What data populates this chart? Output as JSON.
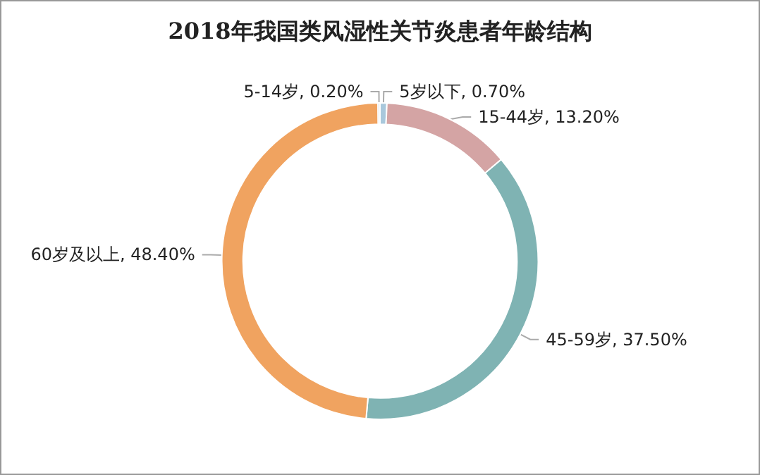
{
  "chart_data": {
    "type": "donut",
    "title": "2018年我国类风湿性关节炎患者年龄结构",
    "categories": [
      "5岁以下",
      "15-44岁",
      "45-59岁",
      "60岁及以上",
      "5-14岁"
    ],
    "values": [
      0.7,
      13.2,
      37.5,
      48.4,
      0.2
    ],
    "value_labels": [
      "0.70%",
      "13.20%",
      "37.50%",
      "48.40%",
      "0.20%"
    ],
    "colors": [
      "#a9c8dc",
      "#d4a4a4",
      "#7fb3b3",
      "#f0a360",
      "#c9d6e2"
    ],
    "legend": false
  }
}
